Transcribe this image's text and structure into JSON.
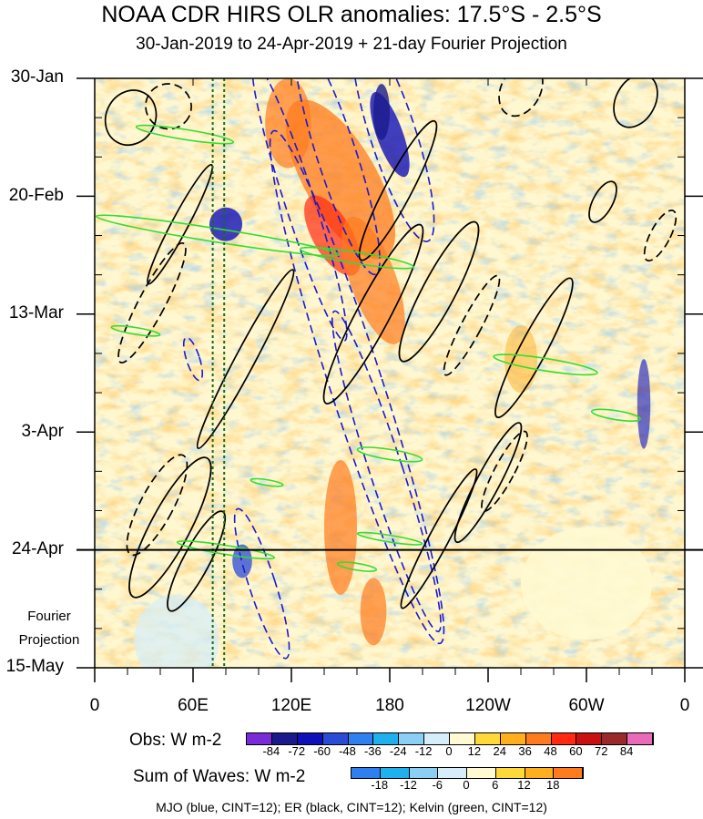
{
  "chart_data": {
    "type": "heatmap",
    "title": "NOAA CDR HIRS OLR anomalies: 17.5°S - 2.5°S",
    "subtitle": "30-Jan-2019 to 24-Apr-2019 + 21-day Fourier Projection",
    "x_axis": {
      "ticks": [
        "0",
        "60E",
        "120E",
        "180",
        "120W",
        "60W",
        "0"
      ],
      "lon_values": [
        0,
        60,
        120,
        180,
        240,
        300,
        360
      ],
      "range": [
        0,
        360
      ]
    },
    "y_axis": {
      "ticks": [
        "30-Jan",
        "20-Feb",
        "13-Mar",
        "3-Apr",
        "24-Apr",
        "15-May"
      ],
      "day_values": [
        0,
        21,
        42,
        63,
        84,
        105
      ],
      "range": [
        0,
        105
      ]
    },
    "observation_end_label": "24-Apr",
    "projection_label_line1": "Fourier",
    "projection_label_line2": "Projection",
    "reference_lon_lines": [
      72,
      79
    ],
    "obs_colorbar": {
      "label": "Obs: W m-2",
      "levels": [
        "-84",
        "-72",
        "-60",
        "-48",
        "-36",
        "-24",
        "-12",
        "0",
        "12",
        "24",
        "36",
        "48",
        "60",
        "72",
        "84"
      ],
      "colors": [
        "#7a2bd8",
        "#1a1a8c",
        "#1010b8",
        "#2a4ad8",
        "#2f7ff0",
        "#1fb0ee",
        "#8ccff5",
        "#d6eefa",
        "#fffad2",
        "#ffd93a",
        "#ffae1e",
        "#ff7b1e",
        "#ff2a10",
        "#c81010",
        "#9a2a2a",
        "#e86ab8"
      ]
    },
    "waves_colorbar": {
      "label": "Sum of Waves: W m-2",
      "levels": [
        "-18",
        "-12",
        "-6",
        "0",
        "6",
        "12",
        "18"
      ],
      "colors": [
        "#2f7ff0",
        "#1fb0ee",
        "#8ccff5",
        "#d6eefa",
        "#fffad2",
        "#ffd93a",
        "#ffae1e",
        "#ff7b1e"
      ]
    },
    "footer": "MJO (blue, CINT=12); ER (black, CINT=12); Kelvin (green, CINT=12)",
    "mjo_contours": [
      {
        "lon_deg": 125,
        "day": 22,
        "a_deg": 9,
        "b_days": 26,
        "sign": "neg"
      },
      {
        "lon_deg": 148,
        "day": 14,
        "a_deg": 12,
        "b_days": 22,
        "sign": "neg"
      },
      {
        "lon_deg": 160,
        "day": 55,
        "a_deg": 16,
        "b_days": 48,
        "sign": "neg"
      },
      {
        "lon_deg": 102,
        "day": 90,
        "a_deg": 8,
        "b_days": 14,
        "sign": "neg"
      },
      {
        "lon_deg": 182,
        "day": 10,
        "a_deg": 14,
        "b_days": 20,
        "sign": "neg"
      },
      {
        "lon_deg": 178,
        "day": 70,
        "a_deg": 10,
        "b_days": 30,
        "sign": "neg"
      },
      {
        "lon_deg": 60,
        "day": 50,
        "a_deg": 4,
        "b_days": 4,
        "sign": "neg"
      }
    ],
    "er_contours": [
      {
        "lon_deg": 22,
        "day": 7,
        "a_deg": 15,
        "b_days": 5,
        "sign": "pos"
      },
      {
        "lon_deg": 52,
        "day": 26,
        "a_deg": 5,
        "b_days": 12,
        "sign": "pos"
      },
      {
        "lon_deg": 92,
        "day": 50,
        "a_deg": 6,
        "b_days": 18,
        "sign": "pos"
      },
      {
        "lon_deg": 62,
        "day": 86,
        "a_deg": 8,
        "b_days": 10,
        "sign": "pos"
      },
      {
        "lon_deg": 46,
        "day": 80,
        "a_deg": 12,
        "b_days": 14,
        "sign": "pos"
      },
      {
        "lon_deg": 210,
        "day": 82,
        "a_deg": 6,
        "b_days": 14,
        "sign": "pos"
      },
      {
        "lon_deg": 240,
        "day": 72,
        "a_deg": 7,
        "b_days": 12,
        "sign": "pos"
      },
      {
        "lon_deg": 268,
        "day": 48,
        "a_deg": 8,
        "b_days": 14,
        "sign": "pos"
      },
      {
        "lon_deg": 185,
        "day": 20,
        "a_deg": 8,
        "b_days": 14,
        "sign": "pos"
      },
      {
        "lon_deg": 170,
        "day": 42,
        "a_deg": 10,
        "b_days": 18,
        "sign": "pos"
      },
      {
        "lon_deg": 210,
        "day": 38,
        "a_deg": 10,
        "b_days": 14,
        "sign": "pos"
      },
      {
        "lon_deg": 330,
        "day": 4,
        "a_deg": 12,
        "b_days": 5,
        "sign": "pos"
      },
      {
        "lon_deg": 310,
        "day": 22,
        "a_deg": 6,
        "b_days": 4,
        "sign": "pos"
      },
      {
        "lon_deg": 260,
        "day": 2,
        "a_deg": 12,
        "b_days": 5,
        "sign": "neg"
      },
      {
        "lon_deg": 345,
        "day": 28,
        "a_deg": 6,
        "b_days": 5,
        "sign": "neg"
      },
      {
        "lon_deg": 35,
        "day": 40,
        "a_deg": 8,
        "b_days": 12,
        "sign": "neg"
      },
      {
        "lon_deg": 38,
        "day": 76,
        "a_deg": 10,
        "b_days": 10,
        "sign": "neg"
      },
      {
        "lon_deg": 230,
        "day": 44,
        "a_deg": 6,
        "b_days": 10,
        "sign": "neg"
      },
      {
        "lon_deg": 250,
        "day": 70,
        "a_deg": 6,
        "b_days": 8,
        "sign": "neg"
      },
      {
        "lon_deg": 45,
        "day": 5,
        "a_deg": 14,
        "b_days": 4,
        "sign": "neg"
      }
    ],
    "kelvin_contours": [
      {
        "lon_deg": 75,
        "day": 28,
        "a_deg": 75,
        "b_days": 1.2
      },
      {
        "lon_deg": 160,
        "day": 32,
        "a_deg": 35,
        "b_days": 1.0
      },
      {
        "lon_deg": 55,
        "day": 10,
        "a_deg": 30,
        "b_days": 0.9
      },
      {
        "lon_deg": 25,
        "day": 45,
        "a_deg": 15,
        "b_days": 0.6
      },
      {
        "lon_deg": 275,
        "day": 51,
        "a_deg": 32,
        "b_days": 1.1
      },
      {
        "lon_deg": 318,
        "day": 60,
        "a_deg": 15,
        "b_days": 0.8
      },
      {
        "lon_deg": 180,
        "day": 67,
        "a_deg": 20,
        "b_days": 0.9
      },
      {
        "lon_deg": 105,
        "day": 72,
        "a_deg": 10,
        "b_days": 0.5
      },
      {
        "lon_deg": 180,
        "day": 82,
        "a_deg": 20,
        "b_days": 0.6
      },
      {
        "lon_deg": 80,
        "day": 84,
        "a_deg": 30,
        "b_days": 0.8
      },
      {
        "lon_deg": 160,
        "day": 87,
        "a_deg": 12,
        "b_days": 0.6
      }
    ]
  }
}
